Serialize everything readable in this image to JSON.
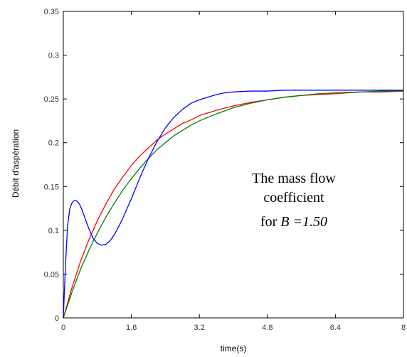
{
  "chart_data": {
    "type": "line",
    "title": "",
    "xlabel": "time(s)",
    "ylabel": "Débit d'aspération",
    "xlim": [
      0,
      8
    ],
    "ylim": [
      0,
      0.35
    ],
    "grid": false,
    "legend": "none",
    "x_ticks": [
      "0",
      "1.6",
      "3.2",
      "4.8",
      "6.4",
      "8"
    ],
    "y_ticks": [
      "0",
      "0.05",
      "0.1",
      "0.15",
      "0.2",
      "0.25",
      "0.3",
      "0.35"
    ],
    "annotation": {
      "line1": "The mass flow",
      "line2": "coefficient",
      "line3_prefix": "for ",
      "line3_var": "B",
      "line3_value": " =1.50"
    },
    "series": [
      {
        "color": "#ff0000",
        "x": [
          0,
          0.2,
          0.4,
          0.6,
          0.8,
          1.0,
          1.2,
          1.4,
          1.6,
          1.8,
          2.0,
          2.2,
          2.4,
          2.6,
          2.8,
          3.0,
          3.2,
          3.6,
          4.0,
          4.4,
          4.8,
          5.2,
          5.6,
          6.0,
          6.4,
          7.0,
          7.5,
          8.0
        ],
        "y": [
          0,
          0.034,
          0.064,
          0.089,
          0.111,
          0.13,
          0.147,
          0.161,
          0.174,
          0.185,
          0.194,
          0.203,
          0.21,
          0.216,
          0.222,
          0.226,
          0.231,
          0.237,
          0.242,
          0.246,
          0.249,
          0.252,
          0.254,
          0.255,
          0.256,
          0.258,
          0.258,
          0.259
        ]
      },
      {
        "color": "#008000",
        "x": [
          0,
          0.2,
          0.4,
          0.6,
          0.8,
          1.0,
          1.2,
          1.4,
          1.6,
          1.8,
          2.0,
          2.2,
          2.4,
          2.6,
          2.8,
          3.0,
          3.2,
          3.6,
          4.0,
          4.4,
          4.8,
          5.2,
          5.6,
          6.0,
          6.4,
          7.0,
          7.5,
          8.0
        ],
        "y": [
          0,
          0.029,
          0.055,
          0.077,
          0.097,
          0.115,
          0.131,
          0.146,
          0.159,
          0.171,
          0.182,
          0.192,
          0.2,
          0.208,
          0.214,
          0.22,
          0.225,
          0.233,
          0.24,
          0.245,
          0.249,
          0.252,
          0.254,
          0.256,
          0.257,
          0.258,
          0.259,
          0.259
        ]
      },
      {
        "color": "#0000ff",
        "x": [
          0,
          0.05,
          0.1,
          0.15,
          0.2,
          0.25,
          0.3,
          0.35,
          0.4,
          0.45,
          0.5,
          0.6,
          0.7,
          0.8,
          0.9,
          1.0,
          1.1,
          1.2,
          1.3,
          1.4,
          1.6,
          1.8,
          2.0,
          2.2,
          2.4,
          2.6,
          2.8,
          3.0,
          3.2,
          3.4,
          3.6,
          3.8,
          4.0,
          4.4,
          4.8,
          5.2,
          6.0,
          7.0,
          8.0
        ],
        "y": [
          0,
          0.06,
          0.105,
          0.124,
          0.131,
          0.134,
          0.134,
          0.132,
          0.128,
          0.122,
          0.115,
          0.102,
          0.091,
          0.085,
          0.083,
          0.084,
          0.088,
          0.095,
          0.104,
          0.114,
          0.136,
          0.16,
          0.182,
          0.201,
          0.217,
          0.229,
          0.238,
          0.245,
          0.249,
          0.252,
          0.255,
          0.257,
          0.258,
          0.259,
          0.259,
          0.26,
          0.26,
          0.26,
          0.26
        ]
      }
    ]
  }
}
